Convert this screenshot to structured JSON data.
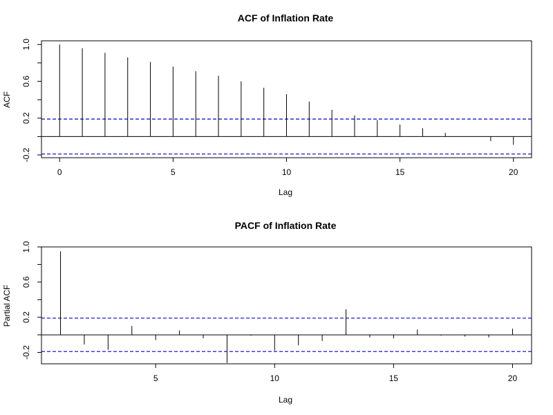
{
  "chart_data": [
    {
      "type": "bar",
      "title": "ACF of Inflation Rate",
      "xlabel": "Lag",
      "ylabel": "ACF",
      "xlim": [
        -0.8,
        20.8
      ],
      "ylim": [
        -0.23,
        1.04
      ],
      "xticks": [
        0,
        5,
        10,
        15,
        20
      ],
      "yticks": [
        -0.2,
        0.2,
        0.6,
        1.0
      ],
      "ytick_labels": [
        "-0.2",
        "0.2",
        "0.6",
        "1.0"
      ],
      "ci_bounds": [
        0.19,
        -0.19
      ],
      "ci_color": "#0000cc",
      "x": [
        0,
        1,
        2,
        3,
        4,
        5,
        6,
        7,
        8,
        9,
        10,
        11,
        12,
        13,
        14,
        15,
        16,
        17,
        18,
        19,
        20
      ],
      "values": [
        1.0,
        0.96,
        0.91,
        0.86,
        0.81,
        0.76,
        0.71,
        0.66,
        0.6,
        0.53,
        0.46,
        0.38,
        0.29,
        0.23,
        0.18,
        0.13,
        0.09,
        0.04,
        0.0,
        -0.05,
        -0.09
      ]
    },
    {
      "type": "bar",
      "title": "PACF of Inflation Rate",
      "xlabel": "Lag",
      "ylabel": "Partial ACF",
      "xlim": [
        0.2,
        20.8
      ],
      "ylim": [
        -0.33,
        1.0
      ],
      "xticks": [
        5,
        10,
        15,
        20
      ],
      "yticks": [
        -0.2,
        0.2,
        0.6,
        1.0
      ],
      "ytick_labels": [
        "-0.2",
        "0.2",
        "0.6",
        "1.0"
      ],
      "ci_bounds": [
        0.19,
        -0.19
      ],
      "ci_color": "#0000cc",
      "x": [
        1,
        2,
        3,
        4,
        5,
        6,
        7,
        8,
        9,
        10,
        11,
        12,
        13,
        14,
        15,
        16,
        17,
        18,
        19,
        20
      ],
      "values": [
        0.95,
        -0.11,
        -0.17,
        0.1,
        -0.06,
        0.05,
        -0.04,
        -0.32,
        -0.01,
        -0.18,
        -0.12,
        -0.07,
        0.29,
        -0.03,
        -0.04,
        0.06,
        -0.01,
        -0.02,
        -0.03,
        0.07
      ]
    }
  ]
}
